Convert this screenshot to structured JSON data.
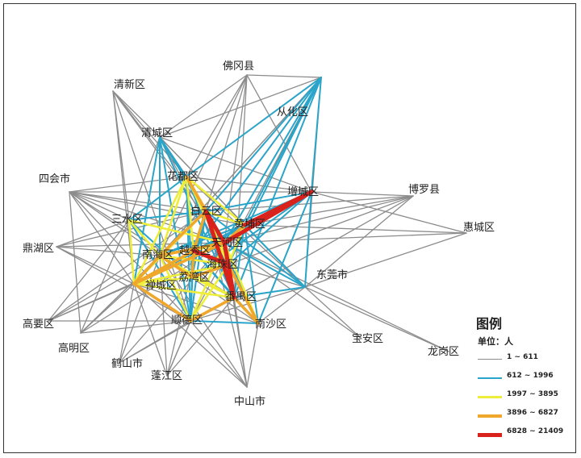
{
  "nodes": [
    {
      "id": "qingxin",
      "label": "清新区"
    },
    {
      "id": "fogang",
      "label": "佛冈县"
    },
    {
      "id": "conghua",
      "label": "从化区"
    },
    {
      "id": "qingcheng",
      "label": "清城区"
    },
    {
      "id": "huadu",
      "label": "花都区"
    },
    {
      "id": "sihui",
      "label": "四会市"
    },
    {
      "id": "zengcheng",
      "label": "增城区"
    },
    {
      "id": "boluo",
      "label": "博罗县"
    },
    {
      "id": "baiyun",
      "label": "白云区"
    },
    {
      "id": "huangpu",
      "label": "黄埔区"
    },
    {
      "id": "sanshui",
      "label": "三水区"
    },
    {
      "id": "huicheng",
      "label": "惠城区"
    },
    {
      "id": "tianhe",
      "label": "天河区"
    },
    {
      "id": "dinghu",
      "label": "鼎湖区"
    },
    {
      "id": "nanhai",
      "label": "南海区"
    },
    {
      "id": "yuexiu",
      "label": "越秀区"
    },
    {
      "id": "haizhu",
      "label": "海珠区"
    },
    {
      "id": "dongguan",
      "label": "东莞市"
    },
    {
      "id": "liwan",
      "label": "荔湾区"
    },
    {
      "id": "chancheng",
      "label": "禅城区"
    },
    {
      "id": "panyu",
      "label": "番禺区"
    },
    {
      "id": "gaoyao",
      "label": "高要区"
    },
    {
      "id": "shunde",
      "label": "顺德区"
    },
    {
      "id": "nansha",
      "label": "南沙区"
    },
    {
      "id": "gaoming",
      "label": "高明区"
    },
    {
      "id": "baoan",
      "label": "宝安区"
    },
    {
      "id": "heshan",
      "label": "鹤山市"
    },
    {
      "id": "longgang",
      "label": "龙岗区"
    },
    {
      "id": "pengjiang",
      "label": "蓬江区"
    },
    {
      "id": "zhongshan",
      "label": "中山市"
    }
  ],
  "edges": [
    {
      "a": "tianhe",
      "b": "zengcheng",
      "cls": 5
    },
    {
      "a": "tianhe",
      "b": "panyu",
      "cls": 5
    },
    {
      "a": "haizhu",
      "b": "panyu",
      "cls": 5
    },
    {
      "a": "baiyun",
      "b": "panyu",
      "cls": 5
    },
    {
      "a": "huangpu",
      "b": "zengcheng",
      "cls": 5
    },
    {
      "a": "yuexiu",
      "b": "haizhu",
      "cls": 5
    },
    {
      "a": "tianhe",
      "b": "haizhu",
      "cls": 5
    },
    {
      "a": "baiyun",
      "b": "tianhe",
      "cls": 5
    },
    {
      "a": "chancheng",
      "b": "nanhai",
      "cls": 4
    },
    {
      "a": "chancheng",
      "b": "shunde",
      "cls": 4
    },
    {
      "a": "nanhai",
      "b": "liwan",
      "cls": 4
    },
    {
      "a": "liwan",
      "b": "yuexiu",
      "cls": 4
    },
    {
      "a": "baiyun",
      "b": "huadu",
      "cls": 4
    },
    {
      "a": "baiyun",
      "b": "yuexiu",
      "cls": 4
    },
    {
      "a": "shunde",
      "b": "panyu",
      "cls": 4
    },
    {
      "a": "nansha",
      "b": "panyu",
      "cls": 4
    },
    {
      "a": "tianhe",
      "b": "huangpu",
      "cls": 4
    },
    {
      "a": "chancheng",
      "b": "yuexiu",
      "cls": 4
    },
    {
      "a": "nanhai",
      "b": "tianhe",
      "cls": 4
    },
    {
      "a": "chancheng",
      "b": "tianhe",
      "cls": 4
    },
    {
      "a": "huadu",
      "b": "tianhe",
      "cls": 4
    },
    {
      "a": "nanhai",
      "b": "baiyun",
      "cls": 4
    },
    {
      "a": "liwan",
      "b": "haizhu",
      "cls": 4
    },
    {
      "a": "haizhu",
      "b": "nansha",
      "cls": 4
    },
    {
      "a": "sanshui",
      "b": "chancheng",
      "cls": 3
    },
    {
      "a": "sanshui",
      "b": "nanhai",
      "cls": 3
    },
    {
      "a": "huadu",
      "b": "chancheng",
      "cls": 3
    },
    {
      "a": "huadu",
      "b": "nanhai",
      "cls": 3
    },
    {
      "a": "huadu",
      "b": "haizhu",
      "cls": 3
    },
    {
      "a": "huadu",
      "b": "huangpu",
      "cls": 3
    },
    {
      "a": "baiyun",
      "b": "huangpu",
      "cls": 3
    },
    {
      "a": "baiyun",
      "b": "haizhu",
      "cls": 3
    },
    {
      "a": "chancheng",
      "b": "liwan",
      "cls": 3
    },
    {
      "a": "chancheng",
      "b": "haizhu",
      "cls": 3
    },
    {
      "a": "chancheng",
      "b": "panyu",
      "cls": 3
    },
    {
      "a": "nanhai",
      "b": "haizhu",
      "cls": 3
    },
    {
      "a": "nanhai",
      "b": "panyu",
      "cls": 3
    },
    {
      "a": "nanhai",
      "b": "shunde",
      "cls": 3
    },
    {
      "a": "shunde",
      "b": "haizhu",
      "cls": 3
    },
    {
      "a": "shunde",
      "b": "tianhe",
      "cls": 3
    },
    {
      "a": "yuexiu",
      "b": "tianhe",
      "cls": 3
    },
    {
      "a": "huangpu",
      "b": "haizhu",
      "cls": 3
    },
    {
      "a": "tianhe",
      "b": "nansha",
      "cls": 3
    },
    {
      "a": "liwan",
      "b": "panyu",
      "cls": 3
    },
    {
      "a": "sanshui",
      "b": "tianhe",
      "cls": 3
    },
    {
      "a": "huadu",
      "b": "yuexiu",
      "cls": 3
    },
    {
      "a": "baiyun",
      "b": "chancheng",
      "cls": 3
    },
    {
      "a": "qingcheng",
      "b": "huadu",
      "cls": 2
    },
    {
      "a": "qingcheng",
      "b": "baiyun",
      "cls": 2
    },
    {
      "a": "qingcheng",
      "b": "tianhe",
      "cls": 2
    },
    {
      "a": "qingcheng",
      "b": "nanhai",
      "cls": 2
    },
    {
      "a": "qingcheng",
      "b": "panyu",
      "cls": 2
    },
    {
      "a": "qingcheng",
      "b": "chancheng",
      "cls": 2
    },
    {
      "a": "qingcheng",
      "b": "shunde",
      "cls": 2
    },
    {
      "a": "conghua",
      "b": "baiyun",
      "cls": 2
    },
    {
      "a": "conghua",
      "b": "tianhe",
      "cls": 2
    },
    {
      "a": "conghua",
      "b": "huadu",
      "cls": 2
    },
    {
      "a": "conghua",
      "b": "zengcheng",
      "cls": 2
    },
    {
      "a": "conghua",
      "b": "huangpu",
      "cls": 2
    },
    {
      "a": "conghua",
      "b": "haizhu",
      "cls": 2
    },
    {
      "a": "conghua",
      "b": "panyu",
      "cls": 2
    },
    {
      "a": "conghua",
      "b": "yuexiu",
      "cls": 2
    },
    {
      "a": "zengcheng",
      "b": "baiyun",
      "cls": 2
    },
    {
      "a": "zengcheng",
      "b": "haizhu",
      "cls": 2
    },
    {
      "a": "zengcheng",
      "b": "nansha",
      "cls": 2
    },
    {
      "a": "zengcheng",
      "b": "yuexiu",
      "cls": 2
    },
    {
      "a": "zengcheng",
      "b": "nanhai",
      "cls": 2
    },
    {
      "a": "zengcheng",
      "b": "chancheng",
      "cls": 2
    },
    {
      "a": "zengcheng",
      "b": "liwan",
      "cls": 2
    },
    {
      "a": "huadu",
      "b": "sanshui",
      "cls": 2
    },
    {
      "a": "huadu",
      "b": "liwan",
      "cls": 2
    },
    {
      "a": "huadu",
      "b": "shunde",
      "cls": 2
    },
    {
      "a": "huadu",
      "b": "panyu",
      "cls": 2
    },
    {
      "a": "sanshui",
      "b": "baiyun",
      "cls": 2
    },
    {
      "a": "sanshui",
      "b": "shunde",
      "cls": 2
    },
    {
      "a": "sanshui",
      "b": "liwan",
      "cls": 2
    },
    {
      "a": "huangpu",
      "b": "panyu",
      "cls": 2
    },
    {
      "a": "huangpu",
      "b": "yuexiu",
      "cls": 2
    },
    {
      "a": "huangpu",
      "b": "nanhai",
      "cls": 2
    },
    {
      "a": "huangpu",
      "b": "chancheng",
      "cls": 2
    },
    {
      "a": "huangpu",
      "b": "dongguan",
      "cls": 2
    },
    {
      "a": "dongguan",
      "b": "tianhe",
      "cls": 2
    },
    {
      "a": "dongguan",
      "b": "panyu",
      "cls": 2
    },
    {
      "a": "dongguan",
      "b": "baiyun",
      "cls": 2
    },
    {
      "a": "dongguan",
      "b": "zengcheng",
      "cls": 2
    },
    {
      "a": "shunde",
      "b": "nansha",
      "cls": 2
    },
    {
      "a": "shunde",
      "b": "liwan",
      "cls": 2
    },
    {
      "a": "shunde",
      "b": "yuexiu",
      "cls": 2
    },
    {
      "a": "shunde",
      "b": "baiyun",
      "cls": 2
    },
    {
      "a": "nansha",
      "b": "baiyun",
      "cls": 2
    },
    {
      "a": "nansha",
      "b": "huangpu",
      "cls": 2
    },
    {
      "a": "nansha",
      "b": "yuexiu",
      "cls": 2
    },
    {
      "a": "liwan",
      "b": "baiyun",
      "cls": 2
    },
    {
      "a": "panyu",
      "b": "yuexiu",
      "cls": 2
    },
    {
      "a": "qingxin",
      "b": "qingcheng",
      "cls": 1
    },
    {
      "a": "qingxin",
      "b": "huadu",
      "cls": 1
    },
    {
      "a": "qingxin",
      "b": "baiyun",
      "cls": 1
    },
    {
      "a": "qingxin",
      "b": "tianhe",
      "cls": 1
    },
    {
      "a": "qingxin",
      "b": "shunde",
      "cls": 1
    },
    {
      "a": "qingxin",
      "b": "sanshui",
      "cls": 1
    },
    {
      "a": "fogang",
      "b": "conghua",
      "cls": 1
    },
    {
      "a": "fogang",
      "b": "qingcheng",
      "cls": 1
    },
    {
      "a": "fogang",
      "b": "baiyun",
      "cls": 1
    },
    {
      "a": "fogang",
      "b": "huadu",
      "cls": 1
    },
    {
      "a": "fogang",
      "b": "tianhe",
      "cls": 1
    },
    {
      "a": "fogang",
      "b": "zengcheng",
      "cls": 1
    },
    {
      "a": "fogang",
      "b": "panyu",
      "cls": 1
    },
    {
      "a": "fogang",
      "b": "nanhai",
      "cls": 1
    },
    {
      "a": "conghua",
      "b": "qingcheng",
      "cls": 1
    },
    {
      "a": "conghua",
      "b": "nanhai",
      "cls": 1
    },
    {
      "a": "conghua",
      "b": "chancheng",
      "cls": 1
    },
    {
      "a": "conghua",
      "b": "shunde",
      "cls": 1
    },
    {
      "a": "conghua",
      "b": "dongguan",
      "cls": 1
    },
    {
      "a": "qingcheng",
      "b": "sanshui",
      "cls": 1
    },
    {
      "a": "qingcheng",
      "b": "zengcheng",
      "cls": 1
    },
    {
      "a": "qingcheng",
      "b": "huangpu",
      "cls": 1
    },
    {
      "a": "qingcheng",
      "b": "dongguan",
      "cls": 1
    },
    {
      "a": "qingcheng",
      "b": "nansha",
      "cls": 1
    },
    {
      "a": "sihui",
      "b": "huadu",
      "cls": 1
    },
    {
      "a": "sihui",
      "b": "baiyun",
      "cls": 1
    },
    {
      "a": "sihui",
      "b": "sanshui",
      "cls": 1
    },
    {
      "a": "sihui",
      "b": "nanhai",
      "cls": 1
    },
    {
      "a": "sihui",
      "b": "chancheng",
      "cls": 1
    },
    {
      "a": "sihui",
      "b": "tianhe",
      "cls": 1
    },
    {
      "a": "sihui",
      "b": "shunde",
      "cls": 1
    },
    {
      "a": "sihui",
      "b": "panyu",
      "cls": 1
    },
    {
      "a": "sihui",
      "b": "zengcheng",
      "cls": 1
    },
    {
      "a": "sihui",
      "b": "huangpu",
      "cls": 1
    },
    {
      "a": "sihui",
      "b": "gaoming",
      "cls": 1
    },
    {
      "a": "boluo",
      "b": "zengcheng",
      "cls": 1
    },
    {
      "a": "boluo",
      "b": "huangpu",
      "cls": 1
    },
    {
      "a": "boluo",
      "b": "tianhe",
      "cls": 1
    },
    {
      "a": "boluo",
      "b": "baiyun",
      "cls": 1
    },
    {
      "a": "boluo",
      "b": "panyu",
      "cls": 1
    },
    {
      "a": "boluo",
      "b": "haizhu",
      "cls": 1
    },
    {
      "a": "boluo",
      "b": "dongguan",
      "cls": 1
    },
    {
      "a": "huicheng",
      "b": "huangpu",
      "cls": 1
    },
    {
      "a": "huicheng",
      "b": "tianhe",
      "cls": 1
    },
    {
      "a": "huicheng",
      "b": "dongguan",
      "cls": 1
    },
    {
      "a": "huicheng",
      "b": "zengcheng",
      "cls": 1
    },
    {
      "a": "dinghu",
      "b": "nanhai",
      "cls": 1
    },
    {
      "a": "dinghu",
      "b": "chancheng",
      "cls": 1
    },
    {
      "a": "dinghu",
      "b": "sanshui",
      "cls": 1
    },
    {
      "a": "dinghu",
      "b": "baiyun",
      "cls": 1
    },
    {
      "a": "dinghu",
      "b": "tianhe",
      "cls": 1
    },
    {
      "a": "dinghu",
      "b": "shunde",
      "cls": 1
    },
    {
      "a": "gaoyao",
      "b": "chancheng",
      "cls": 1
    },
    {
      "a": "gaoyao",
      "b": "nanhai",
      "cls": 1
    },
    {
      "a": "gaoyao",
      "b": "sanshui",
      "cls": 1
    },
    {
      "a": "gaoyao",
      "b": "shunde",
      "cls": 1
    },
    {
      "a": "gaoyao",
      "b": "baiyun",
      "cls": 1
    },
    {
      "a": "gaoyao",
      "b": "tianhe",
      "cls": 1
    },
    {
      "a": "gaoming",
      "b": "chancheng",
      "cls": 1
    },
    {
      "a": "gaoming",
      "b": "nanhai",
      "cls": 1
    },
    {
      "a": "gaoming",
      "b": "shunde",
      "cls": 1
    },
    {
      "a": "gaoming",
      "b": "sanshui",
      "cls": 1
    },
    {
      "a": "gaoming",
      "b": "tianhe",
      "cls": 1
    },
    {
      "a": "gaoming",
      "b": "baiyun",
      "cls": 1
    },
    {
      "a": "heshan",
      "b": "chancheng",
      "cls": 1
    },
    {
      "a": "heshan",
      "b": "nanhai",
      "cls": 1
    },
    {
      "a": "heshan",
      "b": "shunde",
      "cls": 1
    },
    {
      "a": "heshan",
      "b": "tianhe",
      "cls": 1
    },
    {
      "a": "heshan",
      "b": "panyu",
      "cls": 1
    },
    {
      "a": "pengjiang",
      "b": "chancheng",
      "cls": 1
    },
    {
      "a": "pengjiang",
      "b": "nanhai",
      "cls": 1
    },
    {
      "a": "pengjiang",
      "b": "shunde",
      "cls": 1
    },
    {
      "a": "pengjiang",
      "b": "tianhe",
      "cls": 1
    },
    {
      "a": "pengjiang",
      "b": "panyu",
      "cls": 1
    },
    {
      "a": "pengjiang",
      "b": "baiyun",
      "cls": 1
    },
    {
      "a": "zhongshan",
      "b": "shunde",
      "cls": 1
    },
    {
      "a": "zhongshan",
      "b": "panyu",
      "cls": 1
    },
    {
      "a": "zhongshan",
      "b": "nansha",
      "cls": 1
    },
    {
      "a": "zhongshan",
      "b": "chancheng",
      "cls": 1
    },
    {
      "a": "zhongshan",
      "b": "nanhai",
      "cls": 1
    },
    {
      "a": "zhongshan",
      "b": "tianhe",
      "cls": 1
    },
    {
      "a": "zhongshan",
      "b": "baiyun",
      "cls": 1
    },
    {
      "a": "zhongshan",
      "b": "haizhu",
      "cls": 1
    },
    {
      "a": "dongguan",
      "b": "nansha",
      "cls": 1
    },
    {
      "a": "dongguan",
      "b": "haizhu",
      "cls": 1
    },
    {
      "a": "dongguan",
      "b": "shunde",
      "cls": 1
    },
    {
      "a": "dongguan",
      "b": "huadu",
      "cls": 1
    },
    {
      "a": "baoan",
      "b": "dongguan",
      "cls": 1
    },
    {
      "a": "baoan",
      "b": "tianhe",
      "cls": 1
    },
    {
      "a": "longgang",
      "b": "dongguan",
      "cls": 1
    },
    {
      "a": "longgang",
      "b": "tianhe",
      "cls": 1
    },
    {
      "a": "nansha",
      "b": "chancheng",
      "cls": 1
    },
    {
      "a": "nansha",
      "b": "nanhai",
      "cls": 1
    },
    {
      "a": "huadu",
      "b": "zengcheng",
      "cls": 1
    },
    {
      "a": "qingxin",
      "b": "chancheng",
      "cls": 1
    }
  ],
  "legend": {
    "title": "图例",
    "unit": "单位：人",
    "classes": [
      {
        "cls": 1,
        "label": "1 ~ 611",
        "color": "#8c8c8c"
      },
      {
        "cls": 2,
        "label": "612 ~ 1996",
        "color": "#2aa4c8"
      },
      {
        "cls": 3,
        "label": "1997 ~ 3895",
        "color": "#eeee3a"
      },
      {
        "cls": 4,
        "label": "3896 ~ 6827",
        "color": "#f0a82c"
      },
      {
        "cls": 5,
        "label": "6828 ~ 21409",
        "color": "#d9221c"
      }
    ]
  }
}
